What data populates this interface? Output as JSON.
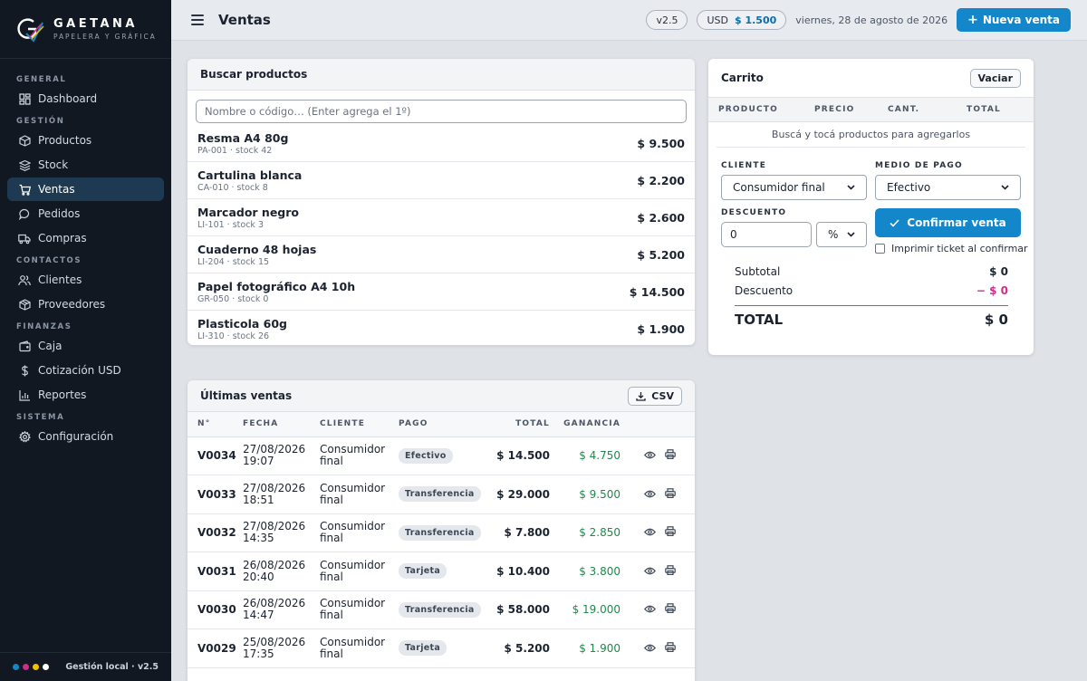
{
  "brand": {
    "name": "GAETANA",
    "sub": "PAPELERA Y GRÁFICA"
  },
  "colors": {
    "accent": "#1387c9",
    "sidebar": "#121821",
    "positive": "#1e8a4c",
    "negative": "#d02c8c"
  },
  "nav": {
    "sections": [
      {
        "title": "GENERAL",
        "items": [
          {
            "label": "Dashboard",
            "icon": "grid-icon"
          }
        ]
      },
      {
        "title": "GESTIÓN",
        "items": [
          {
            "label": "Productos",
            "icon": "box-icon"
          },
          {
            "label": "Stock",
            "icon": "layers-icon"
          },
          {
            "label": "Ventas",
            "icon": "cart-icon",
            "active": true
          },
          {
            "label": "Pedidos",
            "icon": "chat-icon"
          },
          {
            "label": "Compras",
            "icon": "truck-icon"
          }
        ]
      },
      {
        "title": "CONTACTOS",
        "items": [
          {
            "label": "Clientes",
            "icon": "users-icon"
          },
          {
            "label": "Proveedores",
            "icon": "package-icon"
          }
        ]
      },
      {
        "title": "FINANZAS",
        "items": [
          {
            "label": "Caja",
            "icon": "wallet-icon"
          },
          {
            "label": "Cotización USD",
            "icon": "dollar-icon"
          },
          {
            "label": "Reportes",
            "icon": "chart-icon"
          }
        ]
      },
      {
        "title": "SISTEMA",
        "items": [
          {
            "label": "Configuración",
            "icon": "gear-icon"
          }
        ]
      }
    ]
  },
  "footer": {
    "text": "Gestión local · v2.5",
    "dot_colors": [
      "#1387c9",
      "#d02c8c",
      "#f2c200",
      "#ffffff"
    ]
  },
  "topbar": {
    "title": "Ventas",
    "version": "v2.5",
    "usd_label": "USD",
    "usd_value": "$ 1.500",
    "date": "viernes, 28 de agosto de 2026",
    "new_sale": "Nueva venta"
  },
  "search": {
    "title": "Buscar productos",
    "placeholder": "Nombre o código… (Enter agrega el 1º)",
    "products": [
      {
        "name": "Resma A4 80g",
        "meta": "PA-001 · stock 42",
        "price": "$ 9.500"
      },
      {
        "name": "Cartulina blanca",
        "meta": "CA-010 · stock 8",
        "price": "$ 2.200"
      },
      {
        "name": "Marcador negro",
        "meta": "LI-101 · stock 3",
        "price": "$ 2.600"
      },
      {
        "name": "Cuaderno 48 hojas",
        "meta": "LI-204 · stock 15",
        "price": "$ 5.200"
      },
      {
        "name": "Papel fotográfico A4 10h",
        "meta": "GR-050 · stock 0",
        "price": "$ 14.500"
      },
      {
        "name": "Plasticola 60g",
        "meta": "LI-310 · stock 26",
        "price": "$ 1.900"
      }
    ]
  },
  "sales": {
    "title": "Últimas ventas",
    "csv": "CSV",
    "headers": {
      "num": "N°",
      "date": "FECHA",
      "client": "CLIENTE",
      "pay": "PAGO",
      "total": "TOTAL",
      "profit": "GANANCIA"
    },
    "rows": [
      {
        "num": "V0034",
        "date": "27/08/2026",
        "time": "19:07",
        "client1": "Consumidor",
        "client2": "final",
        "pay": "Efectivo",
        "total": "$ 14.500",
        "profit": "$ 4.750"
      },
      {
        "num": "V0033",
        "date": "27/08/2026",
        "time": "18:51",
        "client1": "Consumidor",
        "client2": "final",
        "pay": "Transferencia",
        "total": "$ 29.000",
        "profit": "$ 9.500"
      },
      {
        "num": "V0032",
        "date": "27/08/2026",
        "time": "14:35",
        "client1": "Consumidor",
        "client2": "final",
        "pay": "Transferencia",
        "total": "$ 7.800",
        "profit": "$ 2.850"
      },
      {
        "num": "V0031",
        "date": "26/08/2026",
        "time": "20:40",
        "client1": "Consumidor",
        "client2": "final",
        "pay": "Tarjeta",
        "total": "$ 10.400",
        "profit": "$ 3.800"
      },
      {
        "num": "V0030",
        "date": "26/08/2026",
        "time": "14:47",
        "client1": "Consumidor",
        "client2": "final",
        "pay": "Transferencia",
        "total": "$ 58.000",
        "profit": "$ 19.000"
      },
      {
        "num": "V0029",
        "date": "25/08/2026",
        "time": "17:35",
        "client1": "Consumidor",
        "client2": "final",
        "pay": "Tarjeta",
        "total": "$ 5.200",
        "profit": "$ 1.900"
      }
    ]
  },
  "cart": {
    "title": "Carrito",
    "clear": "Vaciar",
    "cols": {
      "product": "PRODUCTO",
      "price": "PRECIO",
      "qty": "CANT.",
      "total": "TOTAL"
    },
    "empty": "Buscá y tocá productos para agregarlos",
    "client_label": "CLIENTE",
    "client_value": "Consumidor final",
    "payment_label": "MEDIO DE PAGO",
    "payment_value": "Efectivo",
    "discount_label": "DESCUENTO",
    "discount_value": "0",
    "discount_type": "%",
    "confirm": "Confirmar venta",
    "print_ticket": "Imprimir ticket al confirmar",
    "subtotal_label": "Subtotal",
    "subtotal": "$ 0",
    "discount_row_label": "Descuento",
    "discount_amount": "− $ 0",
    "total_label": "TOTAL",
    "total": "$ 0"
  }
}
